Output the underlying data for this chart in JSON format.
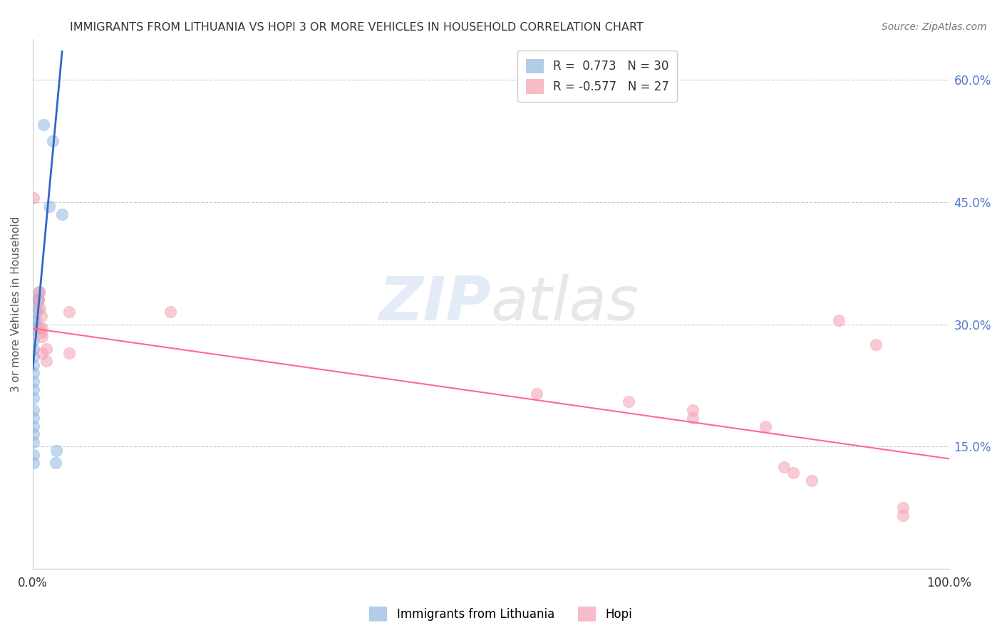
{
  "title": "IMMIGRANTS FROM LITHUANIA VS HOPI 3 OR MORE VEHICLES IN HOUSEHOLD CORRELATION CHART",
  "source": "Source: ZipAtlas.com",
  "ylabel": "3 or more Vehicles in Household",
  "xlim": [
    0.0,
    1.0
  ],
  "ylim": [
    0.0,
    0.65
  ],
  "xticks": [
    0.0,
    0.1,
    0.2,
    0.3,
    0.4,
    0.5,
    0.6,
    0.7,
    0.8,
    0.9,
    1.0
  ],
  "xticklabels": [
    "0.0%",
    "",
    "",
    "",
    "",
    "",
    "",
    "",
    "",
    "",
    "100.0%"
  ],
  "yticks": [
    0.0,
    0.15,
    0.3,
    0.45,
    0.6
  ],
  "yticklabels_right": [
    "",
    "15.0%",
    "30.0%",
    "45.0%",
    "60.0%"
  ],
  "R_blue": 0.773,
  "N_blue": 30,
  "R_pink": -0.577,
  "N_pink": 27,
  "legend_label_blue": "Immigrants from Lithuania",
  "legend_label_pink": "Hopi",
  "blue_color": "#90B8E0",
  "pink_color": "#F4A0B0",
  "blue_line_color": "#3366CC",
  "pink_line_color": "#FF6699",
  "blue_points": [
    [
      0.001,
      0.13
    ],
    [
      0.001,
      0.14
    ],
    [
      0.001,
      0.155
    ],
    [
      0.001,
      0.165
    ],
    [
      0.001,
      0.175
    ],
    [
      0.001,
      0.185
    ],
    [
      0.001,
      0.195
    ],
    [
      0.001,
      0.21
    ],
    [
      0.001,
      0.22
    ],
    [
      0.001,
      0.23
    ],
    [
      0.001,
      0.24
    ],
    [
      0.001,
      0.25
    ],
    [
      0.001,
      0.26
    ],
    [
      0.001,
      0.27
    ],
    [
      0.001,
      0.28
    ],
    [
      0.003,
      0.295
    ],
    [
      0.003,
      0.305
    ],
    [
      0.004,
      0.315
    ],
    [
      0.005,
      0.32
    ],
    [
      0.005,
      0.33
    ],
    [
      0.006,
      0.33
    ],
    [
      0.007,
      0.34
    ],
    [
      0.012,
      0.545
    ],
    [
      0.022,
      0.525
    ],
    [
      0.018,
      0.445
    ],
    [
      0.032,
      0.435
    ],
    [
      0.025,
      0.13
    ],
    [
      0.026,
      0.145
    ],
    [
      0.001,
      0.295
    ],
    [
      0.001,
      0.305
    ]
  ],
  "pink_points": [
    [
      0.001,
      0.455
    ],
    [
      0.006,
      0.33
    ],
    [
      0.007,
      0.34
    ],
    [
      0.008,
      0.32
    ],
    [
      0.008,
      0.295
    ],
    [
      0.009,
      0.31
    ],
    [
      0.009,
      0.29
    ],
    [
      0.01,
      0.285
    ],
    [
      0.01,
      0.295
    ],
    [
      0.01,
      0.265
    ],
    [
      0.015,
      0.255
    ],
    [
      0.015,
      0.27
    ],
    [
      0.04,
      0.315
    ],
    [
      0.04,
      0.265
    ],
    [
      0.15,
      0.315
    ],
    [
      0.55,
      0.215
    ],
    [
      0.65,
      0.205
    ],
    [
      0.72,
      0.195
    ],
    [
      0.72,
      0.185
    ],
    [
      0.8,
      0.175
    ],
    [
      0.82,
      0.125
    ],
    [
      0.83,
      0.118
    ],
    [
      0.85,
      0.108
    ],
    [
      0.88,
      0.305
    ],
    [
      0.92,
      0.275
    ],
    [
      0.95,
      0.075
    ],
    [
      0.95,
      0.065
    ]
  ],
  "blue_line": [
    [
      0.0,
      0.245
    ],
    [
      0.032,
      0.635
    ]
  ],
  "pink_line": [
    [
      0.0,
      0.295
    ],
    [
      1.0,
      0.135
    ]
  ],
  "watermark_zip": "ZIP",
  "watermark_atlas": "atlas",
  "background_color": "#FFFFFF",
  "grid_color": "#CCCCCC"
}
